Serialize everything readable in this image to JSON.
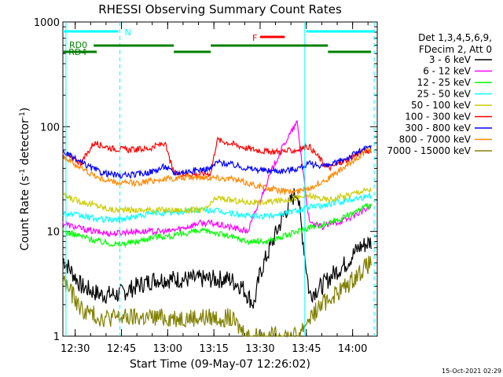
{
  "chart_data": {
    "type": "line",
    "title": "RHESSI Observing Summary Count Rates",
    "xlabel": "Start Time (09-May-07 12:26:02)",
    "ylabel_main": "Count Rate (s",
    "ylabel_sup1": "-1",
    "ylabel_mid": " detector",
    "ylabel_sup2": "-1",
    "ylabel_end": ")",
    "y_scale": "log",
    "ylim": [
      1,
      1000
    ],
    "xlim_min": [
      746,
      848
    ],
    "x_ticks": [
      {
        "t": 750,
        "label": "12:30"
      },
      {
        "t": 765,
        "label": "12:45"
      },
      {
        "t": 780,
        "label": "13:00"
      },
      {
        "t": 795,
        "label": "13:15"
      },
      {
        "t": 810,
        "label": "13:30"
      },
      {
        "t": 825,
        "label": "13:45"
      },
      {
        "t": 840,
        "label": "14:00"
      }
    ],
    "y_ticks": [
      {
        "v": 1,
        "label": "1"
      },
      {
        "v": 10,
        "label": "10"
      },
      {
        "v": 100,
        "label": "100"
      },
      {
        "v": 1000,
        "label": "1000"
      }
    ],
    "legend": {
      "position": "right",
      "header": [
        "Det 1,3,4,5,6,9,",
        "FDecim 2, Att 0"
      ]
    },
    "series": [
      {
        "name": "3 - 6 keV",
        "color": "#000000",
        "points": [
          [
            746,
            5.5
          ],
          [
            752,
            3
          ],
          [
            758,
            2.5
          ],
          [
            764,
            2.5
          ],
          [
            770,
            3
          ],
          [
            776,
            3.5
          ],
          [
            782,
            3.5
          ],
          [
            788,
            3.5
          ],
          [
            794,
            3.5
          ],
          [
            800,
            3.5
          ],
          [
            804,
            3
          ],
          [
            808,
            2
          ],
          [
            810,
            4
          ],
          [
            814,
            8
          ],
          [
            818,
            15
          ],
          [
            822,
            25
          ],
          [
            826,
            2.5
          ],
          [
            830,
            3
          ],
          [
            834,
            4
          ],
          [
            838,
            5
          ],
          [
            842,
            7
          ],
          [
            846,
            8
          ]
        ]
      },
      {
        "name": "6 - 12 keV",
        "color": "#ff00ff",
        "points": [
          [
            746,
            12
          ],
          [
            750,
            11
          ],
          [
            756,
            10
          ],
          [
            762,
            9.5
          ],
          [
            768,
            10
          ],
          [
            774,
            10
          ],
          [
            780,
            10
          ],
          [
            786,
            11
          ],
          [
            790,
            12
          ],
          [
            794,
            12
          ],
          [
            800,
            11
          ],
          [
            806,
            10
          ],
          [
            810,
            20
          ],
          [
            814,
            40
          ],
          [
            818,
            70
          ],
          [
            822,
            110
          ],
          [
            826,
            12
          ],
          [
            830,
            11
          ],
          [
            834,
            12
          ],
          [
            838,
            13
          ],
          [
            842,
            15
          ],
          [
            846,
            17
          ]
        ]
      },
      {
        "name": "12 - 25 keV",
        "color": "#00ff00",
        "points": [
          [
            746,
            10
          ],
          [
            752,
            9
          ],
          [
            758,
            8
          ],
          [
            764,
            7.5
          ],
          [
            770,
            8
          ],
          [
            776,
            9
          ],
          [
            782,
            9
          ],
          [
            788,
            10
          ],
          [
            794,
            10
          ],
          [
            800,
            9
          ],
          [
            806,
            8
          ],
          [
            812,
            8
          ],
          [
            818,
            9
          ],
          [
            822,
            10
          ],
          [
            826,
            11
          ],
          [
            832,
            12
          ],
          [
            838,
            14
          ],
          [
            842,
            16
          ],
          [
            846,
            18
          ]
        ]
      },
      {
        "name": "25 - 50 keV",
        "color": "#00ffff",
        "points": [
          [
            746,
            15
          ],
          [
            752,
            14
          ],
          [
            758,
            13
          ],
          [
            764,
            13
          ],
          [
            770,
            14
          ],
          [
            776,
            15
          ],
          [
            782,
            15
          ],
          [
            788,
            16
          ],
          [
            794,
            16
          ],
          [
            800,
            15
          ],
          [
            806,
            14
          ],
          [
            812,
            14
          ],
          [
            818,
            15
          ],
          [
            822,
            16
          ],
          [
            826,
            17
          ],
          [
            832,
            18
          ],
          [
            838,
            20
          ],
          [
            842,
            21
          ],
          [
            846,
            22
          ]
        ]
      },
      {
        "name": "50 - 100 keV",
        "color": "#cccc00",
        "points": [
          [
            746,
            22
          ],
          [
            750,
            20
          ],
          [
            756,
            18
          ],
          [
            762,
            16
          ],
          [
            768,
            16
          ],
          [
            774,
            16
          ],
          [
            780,
            16
          ],
          [
            786,
            16
          ],
          [
            792,
            16
          ],
          [
            796,
            21
          ],
          [
            800,
            20
          ],
          [
            806,
            19
          ],
          [
            812,
            19
          ],
          [
            818,
            20
          ],
          [
            822,
            21
          ],
          [
            826,
            22
          ],
          [
            832,
            20
          ],
          [
            838,
            22
          ],
          [
            842,
            24
          ],
          [
            846,
            25
          ]
        ]
      },
      {
        "name": "100 - 300 keV",
        "color": "#ff0000",
        "points": [
          [
            746,
            55
          ],
          [
            752,
            45
          ],
          [
            756,
            70
          ],
          [
            762,
            62
          ],
          [
            768,
            60
          ],
          [
            774,
            62
          ],
          [
            779,
            70
          ],
          [
            782,
            36
          ],
          [
            788,
            35
          ],
          [
            794,
            36
          ],
          [
            796,
            75
          ],
          [
            800,
            70
          ],
          [
            806,
            62
          ],
          [
            812,
            58
          ],
          [
            818,
            58
          ],
          [
            822,
            60
          ],
          [
            826,
            65
          ],
          [
            832,
            40
          ],
          [
            838,
            48
          ],
          [
            842,
            56
          ],
          [
            846,
            60
          ]
        ]
      },
      {
        "name": "300 - 800 keV",
        "color": "#0000ff",
        "points": [
          [
            746,
            58
          ],
          [
            752,
            45
          ],
          [
            758,
            37
          ],
          [
            764,
            34
          ],
          [
            770,
            35
          ],
          [
            776,
            38
          ],
          [
            779,
            42
          ],
          [
            782,
            36
          ],
          [
            788,
            38
          ],
          [
            794,
            40
          ],
          [
            796,
            46
          ],
          [
            800,
            44
          ],
          [
            806,
            40
          ],
          [
            812,
            38
          ],
          [
            818,
            38
          ],
          [
            822,
            40
          ],
          [
            826,
            44
          ],
          [
            832,
            42
          ],
          [
            838,
            50
          ],
          [
            842,
            58
          ],
          [
            846,
            64
          ]
        ]
      },
      {
        "name": "800 - 7000 keV",
        "color": "#ff8800",
        "points": [
          [
            746,
            52
          ],
          [
            752,
            40
          ],
          [
            758,
            32
          ],
          [
            764,
            29
          ],
          [
            770,
            29
          ],
          [
            776,
            31
          ],
          [
            782,
            32
          ],
          [
            788,
            33
          ],
          [
            794,
            33
          ],
          [
            800,
            32
          ],
          [
            806,
            29
          ],
          [
            812,
            26
          ],
          [
            818,
            24
          ],
          [
            822,
            24
          ],
          [
            826,
            26
          ],
          [
            832,
            32
          ],
          [
            838,
            42
          ],
          [
            842,
            52
          ],
          [
            846,
            62
          ]
        ]
      },
      {
        "name": "7000 - 15000 keV",
        "color": "#808000",
        "points": [
          [
            746,
            3.5
          ],
          [
            752,
            1.8
          ],
          [
            758,
            1.5
          ],
          [
            764,
            1.5
          ],
          [
            770,
            1.5
          ],
          [
            776,
            1.5
          ],
          [
            782,
            1.5
          ],
          [
            788,
            1.5
          ],
          [
            794,
            1.5
          ],
          [
            800,
            1.5
          ],
          [
            806,
            1
          ],
          [
            822,
            1
          ],
          [
            826,
            1.5
          ],
          [
            830,
            2
          ],
          [
            834,
            2.5
          ],
          [
            838,
            3
          ],
          [
            842,
            4
          ],
          [
            846,
            5
          ]
        ]
      }
    ],
    "state_bars": [
      {
        "label": "N",
        "color": "#00ffff",
        "level": "top",
        "segments": [
          [
            746,
            764
          ],
          [
            825,
            847
          ]
        ]
      },
      {
        "label": "F",
        "color": "#ff0000",
        "level": "flare",
        "segments": [
          [
            810,
            818
          ]
        ]
      },
      {
        "label": "RD0",
        "color": "#008000",
        "level": "upper",
        "segments": [
          [
            746,
            757
          ]
        ]
      },
      {
        "label": "RD4",
        "color": "#008000",
        "level": "mid",
        "segments": [
          [
            756,
            782
          ],
          [
            794,
            832
          ]
        ]
      },
      {
        "label": "",
        "color": "#008000",
        "level": "lower",
        "segments": [
          [
            746,
            756
          ],
          [
            782,
            794
          ],
          [
            832,
            846
          ]
        ]
      }
    ],
    "vlines": [
      {
        "t": 747,
        "color": "#00ffff",
        "dashed": false
      },
      {
        "t": 764.5,
        "color": "#00ffff",
        "dashed": true
      },
      {
        "t": 824.5,
        "color": "#00ffff",
        "dashed": false
      },
      {
        "t": 847,
        "color": "#00ffff",
        "dashed": true
      }
    ],
    "timestamp": "15-Oct-2021 02:29"
  }
}
